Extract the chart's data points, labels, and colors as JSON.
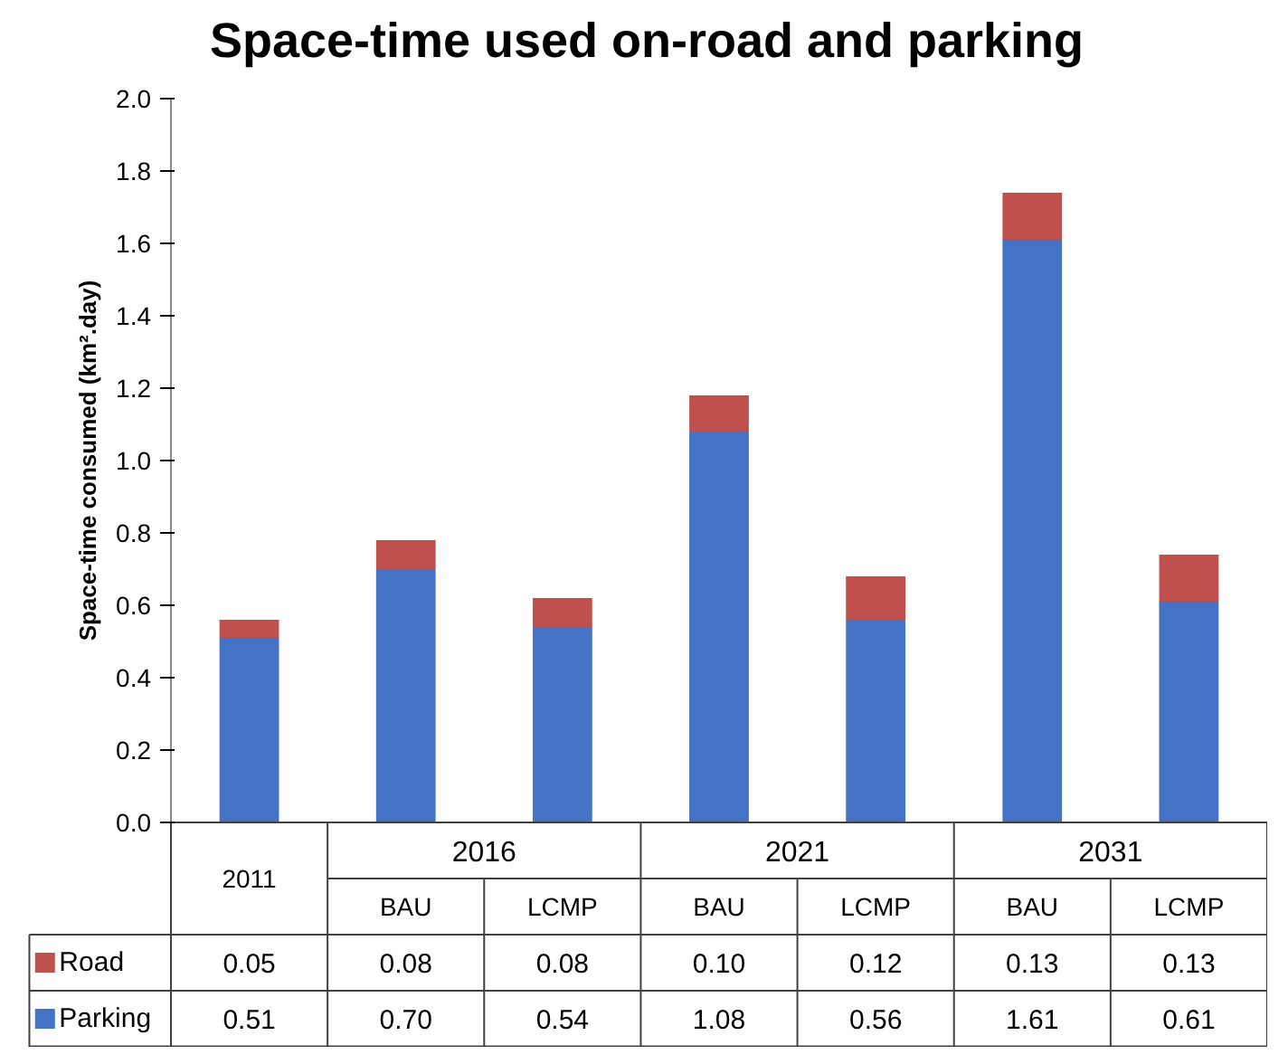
{
  "chart_data": {
    "type": "bar",
    "stacked": true,
    "title": "Space-time used on-road and parking",
    "ylabel": "Space-time consumed (km².day)",
    "categories": [
      "2011",
      "BAU",
      "LCMP",
      "BAU",
      "LCMP",
      "BAU",
      "LCMP"
    ],
    "annotations": [
      "2016",
      "2021",
      "2031"
    ],
    "series": [
      {
        "name": "Parking",
        "color": "#4472c4",
        "values": [
          0.51,
          0.7,
          0.54,
          1.08,
          0.56,
          1.61,
          0.61
        ],
        "value_labels": [
          "0.51",
          "0.70",
          "0.54",
          "1.08",
          "0.56",
          "1.61",
          "0.61"
        ]
      },
      {
        "name": "Road",
        "color": "#c0504d",
        "values": [
          0.05,
          0.08,
          0.08,
          0.1,
          0.12,
          0.13,
          0.13
        ],
        "value_labels": [
          "0.05",
          "0.08",
          "0.08",
          "0.10",
          "0.12",
          "0.13",
          "0.13"
        ]
      }
    ],
    "ylim": [
      0,
      2
    ],
    "yticks": [
      {
        "value": 0,
        "label": "0.0"
      },
      {
        "value": 0.2,
        "label": "0.2"
      },
      {
        "value": 0.4,
        "label": "0.4"
      },
      {
        "value": 0.6,
        "label": "0.6"
      },
      {
        "value": 0.8,
        "label": "0.8"
      },
      {
        "value": 1.0,
        "label": "1.0"
      },
      {
        "value": 1.2,
        "label": "1.2"
      },
      {
        "value": 1.4,
        "label": "1.4"
      },
      {
        "value": 1.6,
        "label": "1.6"
      },
      {
        "value": 1.8,
        "label": "1.8"
      },
      {
        "value": 2.0,
        "label": "2.0"
      }
    ],
    "legend": "bottom"
  }
}
